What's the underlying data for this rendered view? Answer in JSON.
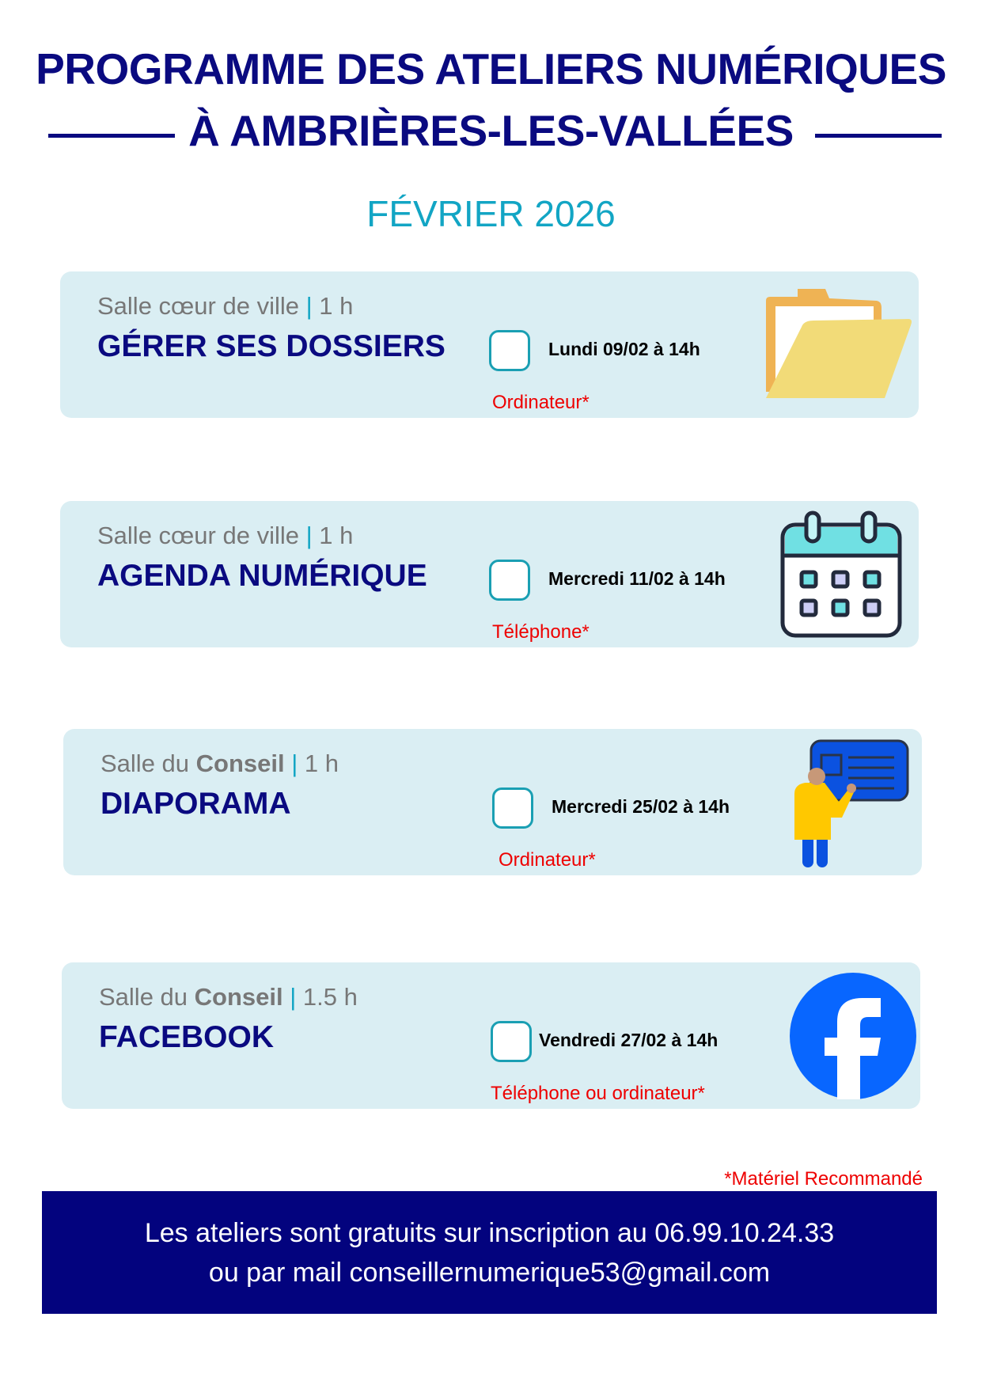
{
  "header": {
    "title_line1": "PROGRAMME DES ATELIERS NUMÉRIQUES",
    "title_line2": "À AMBRIÈRES-LES-VALLÉES",
    "month": "FÉVRIER 2026"
  },
  "workshops": [
    {
      "room": "Salle cœur de ville",
      "room_bold": "",
      "duration": "1 h",
      "title": "GÉRER SES DOSSIERS",
      "date": "Lundi 09/02 à 14h",
      "equipment": "Ordinateur*",
      "icon": "folder-icon"
    },
    {
      "room": "Salle cœur de ville",
      "room_bold": "",
      "duration": "1 h",
      "title": "AGENDA NUMÉRIQUE",
      "date": "Mercredi 11/02 à 14h",
      "equipment": "Téléphone*",
      "icon": "calendar-icon"
    },
    {
      "room": "Salle du ",
      "room_bold": "Conseil",
      "duration": "1 h",
      "title": "DIAPORAMA",
      "date": "Mercredi 25/02 à 14h",
      "equipment": "Ordinateur*",
      "icon": "presenter-icon"
    },
    {
      "room": "Salle du ",
      "room_bold": "Conseil",
      "duration": "1.5 h",
      "title": "FACEBOOK",
      "date": "Vendredi 27/02 à 14h",
      "equipment": "Téléphone ou ordinateur*",
      "icon": "facebook-icon"
    }
  ],
  "separator": "|",
  "footnote": "*Matériel Recommandé",
  "footer": {
    "line1": "Les ateliers sont gratuits sur inscription au 06.99.10.24.33",
    "line2": "ou par mail conseillernumerique53@gmail.com"
  },
  "colors": {
    "navy": "#0a0a80",
    "teal": "#12a5c4",
    "card": "#daeef3",
    "red": "#e00000",
    "facebook": "#0866ff"
  }
}
